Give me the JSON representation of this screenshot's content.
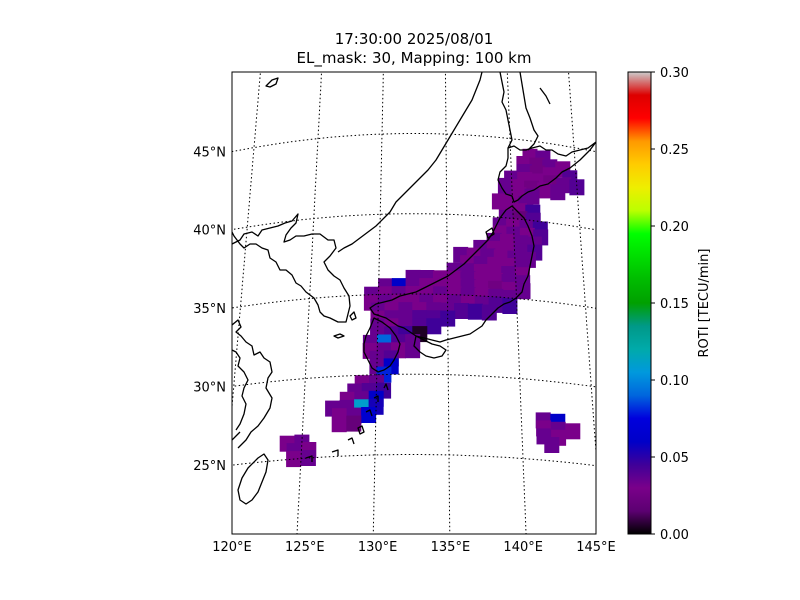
{
  "title": {
    "line1": "17:30:00 2025/08/01",
    "line2": "EL_mask: 30, Mapping: 100 km"
  },
  "map": {
    "lon_range": [
      120,
      145
    ],
    "lat_range": [
      20,
      49
    ],
    "graticule_style": "dotted",
    "lat_ticks": [
      {
        "value": 45,
        "label": "45°N"
      },
      {
        "value": 40,
        "label": "40°N"
      },
      {
        "value": 35,
        "label": "35°N"
      },
      {
        "value": 30,
        "label": "30°N"
      },
      {
        "value": 25,
        "label": "25°N"
      }
    ],
    "lon_ticks": [
      {
        "value": 120,
        "label": "120°E"
      },
      {
        "value": 125,
        "label": "125°E"
      },
      {
        "value": 130,
        "label": "130°E"
      },
      {
        "value": 135,
        "label": "135°E"
      },
      {
        "value": 140,
        "label": "140°E"
      },
      {
        "value": 145,
        "label": "145°E"
      }
    ]
  },
  "colorbar": {
    "label": "ROTI [TECU/min]",
    "colormap": "nipy_spectral",
    "range": [
      0.0,
      0.3
    ],
    "ticks": [
      {
        "value": 0.0,
        "label": "0.00"
      },
      {
        "value": 0.05,
        "label": "0.05"
      },
      {
        "value": 0.1,
        "label": "0.10"
      },
      {
        "value": 0.15,
        "label": "0.15"
      },
      {
        "value": 0.2,
        "label": "0.20"
      },
      {
        "value": 0.25,
        "label": "0.25"
      },
      {
        "value": 0.3,
        "label": "0.30"
      }
    ]
  },
  "roti_cells": [
    {
      "lon": 141.5,
      "lat": 44.0,
      "v": 0.03
    },
    {
      "lon": 142.5,
      "lat": 44.0,
      "v": 0.035
    },
    {
      "lon": 141.0,
      "lat": 43.5,
      "v": 0.03
    },
    {
      "lon": 142.0,
      "lat": 43.5,
      "v": 0.025
    },
    {
      "lon": 143.0,
      "lat": 43.5,
      "v": 0.035
    },
    {
      "lon": 144.0,
      "lat": 43.5,
      "v": 0.03
    },
    {
      "lon": 141.0,
      "lat": 43.0,
      "v": 0.035
    },
    {
      "lon": 142.0,
      "lat": 43.0,
      "v": 0.025
    },
    {
      "lon": 143.0,
      "lat": 43.0,
      "v": 0.03
    },
    {
      "lon": 144.5,
      "lat": 43.0,
      "v": 0.04
    },
    {
      "lon": 140.0,
      "lat": 42.5,
      "v": 0.035
    },
    {
      "lon": 141.0,
      "lat": 42.5,
      "v": 0.03
    },
    {
      "lon": 142.0,
      "lat": 42.5,
      "v": 0.03
    },
    {
      "lon": 143.0,
      "lat": 42.5,
      "v": 0.025
    },
    {
      "lon": 144.0,
      "lat": 42.5,
      "v": 0.035
    },
    {
      "lon": 145.0,
      "lat": 42.5,
      "v": 0.04
    },
    {
      "lon": 139.5,
      "lat": 42.0,
      "v": 0.035
    },
    {
      "lon": 140.5,
      "lat": 42.0,
      "v": 0.03
    },
    {
      "lon": 141.5,
      "lat": 42.0,
      "v": 0.025
    },
    {
      "lon": 142.5,
      "lat": 42.0,
      "v": 0.03
    },
    {
      "lon": 143.5,
      "lat": 42.0,
      "v": 0.035
    },
    {
      "lon": 139.5,
      "lat": 41.5,
      "v": 0.035
    },
    {
      "lon": 140.5,
      "lat": 41.5,
      "v": 0.03
    },
    {
      "lon": 141.5,
      "lat": 41.5,
      "v": 0.035
    },
    {
      "lon": 139.0,
      "lat": 41.0,
      "v": 0.03
    },
    {
      "lon": 140.0,
      "lat": 41.0,
      "v": 0.03
    },
    {
      "lon": 141.0,
      "lat": 41.0,
      "v": 0.035
    },
    {
      "lon": 139.5,
      "lat": 40.5,
      "v": 0.03
    },
    {
      "lon": 140.5,
      "lat": 40.5,
      "v": 0.03
    },
    {
      "lon": 141.5,
      "lat": 40.5,
      "v": 0.045
    },
    {
      "lon": 139.5,
      "lat": 40.0,
      "v": 0.035
    },
    {
      "lon": 140.5,
      "lat": 40.0,
      "v": 0.02
    },
    {
      "lon": 141.5,
      "lat": 40.0,
      "v": 0.04
    },
    {
      "lon": 139.0,
      "lat": 39.5,
      "v": 0.035
    },
    {
      "lon": 140.0,
      "lat": 39.5,
      "v": 0.03
    },
    {
      "lon": 141.0,
      "lat": 39.5,
      "v": 0.035
    },
    {
      "lon": 142.0,
      "lat": 39.5,
      "v": 0.045
    },
    {
      "lon": 139.0,
      "lat": 39.0,
      "v": 0.03
    },
    {
      "lon": 140.0,
      "lat": 39.0,
      "v": 0.035
    },
    {
      "lon": 141.0,
      "lat": 39.0,
      "v": 0.03
    },
    {
      "lon": 142.0,
      "lat": 39.0,
      "v": 0.04
    },
    {
      "lon": 138.5,
      "lat": 38.5,
      "v": 0.035
    },
    {
      "lon": 139.5,
      "lat": 38.5,
      "v": 0.03
    },
    {
      "lon": 140.5,
      "lat": 38.5,
      "v": 0.035
    },
    {
      "lon": 141.5,
      "lat": 38.5,
      "v": 0.035
    },
    {
      "lon": 137.5,
      "lat": 38.0,
      "v": 0.035
    },
    {
      "lon": 138.5,
      "lat": 38.0,
      "v": 0.03
    },
    {
      "lon": 139.5,
      "lat": 38.0,
      "v": 0.03
    },
    {
      "lon": 140.5,
      "lat": 38.0,
      "v": 0.035
    },
    {
      "lon": 141.5,
      "lat": 38.0,
      "v": 0.04
    },
    {
      "lon": 136.0,
      "lat": 37.5,
      "v": 0.035
    },
    {
      "lon": 137.0,
      "lat": 37.5,
      "v": 0.03
    },
    {
      "lon": 138.0,
      "lat": 37.5,
      "v": 0.035
    },
    {
      "lon": 139.0,
      "lat": 37.5,
      "v": 0.03
    },
    {
      "lon": 140.0,
      "lat": 37.5,
      "v": 0.035
    },
    {
      "lon": 141.0,
      "lat": 37.5,
      "v": 0.035
    },
    {
      "lon": 136.5,
      "lat": 37.0,
      "v": 0.03
    },
    {
      "lon": 137.5,
      "lat": 37.0,
      "v": 0.035
    },
    {
      "lon": 138.5,
      "lat": 37.0,
      "v": 0.03
    },
    {
      "lon": 139.5,
      "lat": 37.0,
      "v": 0.03
    },
    {
      "lon": 140.5,
      "lat": 37.0,
      "v": 0.035
    },
    {
      "lon": 135.5,
      "lat": 36.5,
      "v": 0.035
    },
    {
      "lon": 136.5,
      "lat": 36.5,
      "v": 0.035
    },
    {
      "lon": 137.5,
      "lat": 36.5,
      "v": 0.03
    },
    {
      "lon": 138.5,
      "lat": 36.5,
      "v": 0.03
    },
    {
      "lon": 139.5,
      "lat": 36.5,
      "v": 0.035
    },
    {
      "lon": 140.5,
      "lat": 36.5,
      "v": 0.03
    },
    {
      "lon": 132.5,
      "lat": 36.0,
      "v": 0.035
    },
    {
      "lon": 133.5,
      "lat": 36.0,
      "v": 0.035
    },
    {
      "lon": 134.5,
      "lat": 36.0,
      "v": 0.03
    },
    {
      "lon": 135.5,
      "lat": 36.0,
      "v": 0.03
    },
    {
      "lon": 136.5,
      "lat": 36.0,
      "v": 0.035
    },
    {
      "lon": 137.5,
      "lat": 36.0,
      "v": 0.03
    },
    {
      "lon": 138.5,
      "lat": 36.0,
      "v": 0.03
    },
    {
      "lon": 139.5,
      "lat": 36.0,
      "v": 0.035
    },
    {
      "lon": 140.5,
      "lat": 36.0,
      "v": 0.035
    },
    {
      "lon": 130.5,
      "lat": 35.5,
      "v": 0.035
    },
    {
      "lon": 131.5,
      "lat": 35.5,
      "v": 0.06
    },
    {
      "lon": 132.5,
      "lat": 35.5,
      "v": 0.035
    },
    {
      "lon": 133.5,
      "lat": 35.5,
      "v": 0.03
    },
    {
      "lon": 134.5,
      "lat": 35.5,
      "v": 0.03
    },
    {
      "lon": 135.5,
      "lat": 35.5,
      "v": 0.03
    },
    {
      "lon": 136.5,
      "lat": 35.5,
      "v": 0.035
    },
    {
      "lon": 137.5,
      "lat": 35.5,
      "v": 0.03
    },
    {
      "lon": 138.5,
      "lat": 35.5,
      "v": 0.025
    },
    {
      "lon": 139.5,
      "lat": 35.5,
      "v": 0.03
    },
    {
      "lon": 140.5,
      "lat": 35.5,
      "v": 0.035
    },
    {
      "lon": 129.5,
      "lat": 35.0,
      "v": 0.035
    },
    {
      "lon": 130.5,
      "lat": 35.0,
      "v": 0.03
    },
    {
      "lon": 131.5,
      "lat": 35.0,
      "v": 0.035
    },
    {
      "lon": 132.5,
      "lat": 35.0,
      "v": 0.03
    },
    {
      "lon": 133.5,
      "lat": 35.0,
      "v": 0.03
    },
    {
      "lon": 134.5,
      "lat": 35.0,
      "v": 0.035
    },
    {
      "lon": 135.5,
      "lat": 35.0,
      "v": 0.03
    },
    {
      "lon": 136.5,
      "lat": 35.0,
      "v": 0.035
    },
    {
      "lon": 137.5,
      "lat": 35.0,
      "v": 0.03
    },
    {
      "lon": 138.5,
      "lat": 35.0,
      "v": 0.035
    },
    {
      "lon": 139.5,
      "lat": 35.0,
      "v": 0.035
    },
    {
      "lon": 129.5,
      "lat": 34.5,
      "v": 0.03
    },
    {
      "lon": 130.5,
      "lat": 34.5,
      "v": 0.035
    },
    {
      "lon": 131.5,
      "lat": 34.5,
      "v": 0.03
    },
    {
      "lon": 132.5,
      "lat": 34.5,
      "v": 0.03
    },
    {
      "lon": 133.5,
      "lat": 34.5,
      "v": 0.035
    },
    {
      "lon": 134.5,
      "lat": 34.5,
      "v": 0.03
    },
    {
      "lon": 135.5,
      "lat": 34.5,
      "v": 0.035
    },
    {
      "lon": 136.5,
      "lat": 34.5,
      "v": 0.03
    },
    {
      "lon": 137.5,
      "lat": 34.5,
      "v": 0.035
    },
    {
      "lon": 138.5,
      "lat": 34.5,
      "v": 0.04
    },
    {
      "lon": 139.5,
      "lat": 34.5,
      "v": 0.045
    },
    {
      "lon": 130.0,
      "lat": 34.0,
      "v": 0.035
    },
    {
      "lon": 131.0,
      "lat": 34.0,
      "v": 0.03
    },
    {
      "lon": 132.0,
      "lat": 34.0,
      "v": 0.035
    },
    {
      "lon": 133.0,
      "lat": 34.0,
      "v": 0.03
    },
    {
      "lon": 134.0,
      "lat": 34.0,
      "v": 0.035
    },
    {
      "lon": 135.0,
      "lat": 34.0,
      "v": 0.035
    },
    {
      "lon": 136.0,
      "lat": 34.0,
      "v": 0.04
    },
    {
      "lon": 137.0,
      "lat": 34.0,
      "v": 0.045
    },
    {
      "lon": 138.0,
      "lat": 34.0,
      "v": 0.04
    },
    {
      "lon": 130.0,
      "lat": 33.5,
      "v": 0.03
    },
    {
      "lon": 131.0,
      "lat": 33.5,
      "v": 0.035
    },
    {
      "lon": 132.0,
      "lat": 33.5,
      "v": 0.035
    },
    {
      "lon": 133.0,
      "lat": 33.5,
      "v": 0.04
    },
    {
      "lon": 134.0,
      "lat": 33.5,
      "v": 0.04
    },
    {
      "lon": 135.0,
      "lat": 33.5,
      "v": 0.045
    },
    {
      "lon": 130.0,
      "lat": 33.0,
      "v": 0.035
    },
    {
      "lon": 131.0,
      "lat": 33.0,
      "v": 0.03
    },
    {
      "lon": 132.0,
      "lat": 33.0,
      "v": 0.035
    },
    {
      "lon": 133.0,
      "lat": 33.0,
      "v": 0.04
    },
    {
      "lon": 134.0,
      "lat": 33.0,
      "v": 0.045
    },
    {
      "lon": 130.0,
      "lat": 32.5,
      "v": 0.035
    },
    {
      "lon": 131.0,
      "lat": 32.5,
      "v": 0.04
    },
    {
      "lon": 132.0,
      "lat": 32.5,
      "v": 0.045
    },
    {
      "lon": 133.0,
      "lat": 32.5,
      "v": 0.005
    },
    {
      "lon": 129.5,
      "lat": 32.0,
      "v": 0.035
    },
    {
      "lon": 130.5,
      "lat": 32.0,
      "v": 0.09
    },
    {
      "lon": 131.5,
      "lat": 32.0,
      "v": 0.04
    },
    {
      "lon": 132.5,
      "lat": 32.0,
      "v": 0.035
    },
    {
      "lon": 129.5,
      "lat": 31.5,
      "v": 0.03
    },
    {
      "lon": 130.5,
      "lat": 31.5,
      "v": 0.035
    },
    {
      "lon": 131.5,
      "lat": 31.5,
      "v": 0.03
    },
    {
      "lon": 132.5,
      "lat": 31.5,
      "v": 0.035
    },
    {
      "lon": 130.0,
      "lat": 31.0,
      "v": 0.035
    },
    {
      "lon": 131.0,
      "lat": 31.0,
      "v": 0.04
    },
    {
      "lon": 130.0,
      "lat": 30.5,
      "v": 0.035
    },
    {
      "lon": 131.0,
      "lat": 30.5,
      "v": 0.06
    },
    {
      "lon": 130.5,
      "lat": 30.0,
      "v": 0.08
    },
    {
      "lon": 129.0,
      "lat": 29.5,
      "v": 0.03
    },
    {
      "lon": 130.0,
      "lat": 29.5,
      "v": 0.035
    },
    {
      "lon": 128.5,
      "lat": 29.0,
      "v": 0.035
    },
    {
      "lon": 129.5,
      "lat": 29.0,
      "v": 0.04
    },
    {
      "lon": 130.5,
      "lat": 29.0,
      "v": 0.045
    },
    {
      "lon": 128.0,
      "lat": 28.5,
      "v": 0.03
    },
    {
      "lon": 129.0,
      "lat": 28.5,
      "v": 0.035
    },
    {
      "lon": 130.0,
      "lat": 28.5,
      "v": 0.06
    },
    {
      "lon": 127.0,
      "lat": 28.0,
      "v": 0.035
    },
    {
      "lon": 128.0,
      "lat": 28.0,
      "v": 0.035
    },
    {
      "lon": 129.0,
      "lat": 28.0,
      "v": 0.11
    },
    {
      "lon": 130.0,
      "lat": 28.0,
      "v": 0.055
    },
    {
      "lon": 127.5,
      "lat": 27.5,
      "v": 0.03
    },
    {
      "lon": 128.5,
      "lat": 27.5,
      "v": 0.035
    },
    {
      "lon": 129.5,
      "lat": 27.5,
      "v": 0.065
    },
    {
      "lon": 127.5,
      "lat": 27.0,
      "v": 0.03
    },
    {
      "lon": 128.5,
      "lat": 27.0,
      "v": 0.02
    },
    {
      "lon": 124.0,
      "lat": 26.0,
      "v": 0.03
    },
    {
      "lon": 125.0,
      "lat": 26.0,
      "v": 0.035
    },
    {
      "lon": 124.5,
      "lat": 25.5,
      "v": 0.035
    },
    {
      "lon": 125.5,
      "lat": 25.5,
      "v": 0.03
    },
    {
      "lon": 124.5,
      "lat": 25.0,
      "v": 0.03
    },
    {
      "lon": 125.5,
      "lat": 25.0,
      "v": 0.035
    },
    {
      "lon": 141.5,
      "lat": 27.5,
      "v": 0.035
    },
    {
      "lon": 142.5,
      "lat": 27.5,
      "v": 0.06
    },
    {
      "lon": 141.5,
      "lat": 27.0,
      "v": 0.03
    },
    {
      "lon": 142.5,
      "lat": 27.0,
      "v": 0.035
    },
    {
      "lon": 143.5,
      "lat": 27.0,
      "v": 0.03
    },
    {
      "lon": 141.5,
      "lat": 26.5,
      "v": 0.035
    },
    {
      "lon": 142.5,
      "lat": 26.5,
      "v": 0.03
    },
    {
      "lon": 142.0,
      "lat": 26.0,
      "v": 0.035
    }
  ]
}
